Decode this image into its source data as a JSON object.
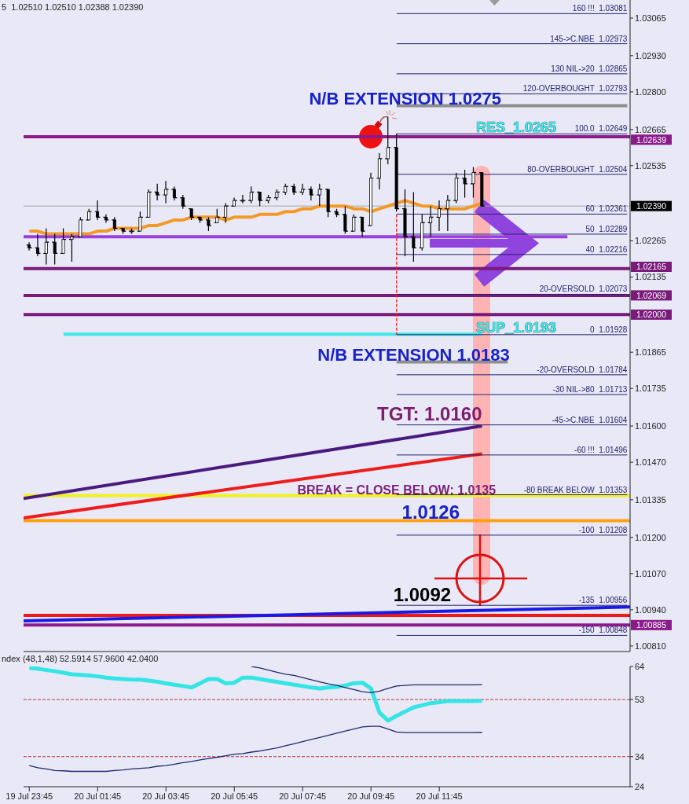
{
  "chart_data": [
    {
      "type": "candlestick",
      "color": "#000000",
      "x": [
        "--07-19T23:45",
        "--07-20T00:00",
        "--07-20T00:15",
        "--07-20T00:30",
        "--07-20T00:45",
        "--07-20T01:00",
        "--07-20T01:15",
        "--07-20T01:30",
        "--07-20T01:45",
        "--07-20T02:00",
        "--07-20T02:15",
        "--07-20T02:30",
        "--07-20T02:45",
        "--07-20T03:00",
        "--07-20T03:15",
        "--07-20T03:30",
        "--07-20T03:45",
        "--07-20T04:00",
        "--07-20T04:15",
        "--07-20T04:30",
        "--07-20T04:45",
        "--07-20T05:00",
        "--07-20T05:15",
        "--07-20T05:30",
        "--07-20T05:45",
        "--07-20T06:00",
        "--07-20T06:15",
        "--07-20T06:30",
        "--07-20T06:45",
        "--07-20T07:00",
        "--07-20T07:15",
        "--07-20T07:30",
        "--07-20T07:45",
        "--07-20T08:00",
        "--07-20T08:15",
        "--07-20T08:30",
        "--07-20T08:45",
        "--07-20T09:00",
        "--07-20T09:15",
        "--07-20T09:30",
        "--07-20T09:45",
        "--07-20T10:00",
        "--07-20T10:15",
        "--07-20T10:30",
        "--07-20T10:45",
        "--07-20T11:00",
        "--07-20T11:15",
        "--07-20T11:30",
        "--07-20T11:45",
        "--07-20T12:00",
        "--07-20T12:15",
        "--07-20T12:30",
        "--07-20T12:45",
        "--07-20T13:00"
      ],
      "ohlc": [
        [
          1.0225,
          1.0226,
          1.0223,
          1.0224
        ],
        [
          1.0224,
          1.0229,
          1.0221,
          1.0222
        ],
        [
          1.0222,
          1.0231,
          1.0218,
          1.0226
        ],
        [
          1.0226,
          1.0229,
          1.0218,
          1.0222
        ],
        [
          1.0222,
          1.0231,
          1.0222,
          1.0227
        ],
        [
          1.0227,
          1.0229,
          1.0219,
          1.0228
        ],
        [
          1.0228,
          1.0235,
          1.0228,
          1.0234
        ],
        [
          1.0234,
          1.0238,
          1.0234,
          1.0237
        ],
        [
          1.0237,
          1.0241,
          1.0234,
          1.0235
        ],
        [
          1.0235,
          1.0236,
          1.0233,
          1.0234
        ],
        [
          1.0234,
          1.0235,
          1.023,
          1.0231
        ],
        [
          1.0231,
          1.0231,
          1.0229,
          1.023
        ],
        [
          1.023,
          1.0231,
          1.0229,
          1.023
        ],
        [
          1.023,
          1.0237,
          1.023,
          1.0235
        ],
        [
          1.0235,
          1.0245,
          1.0235,
          1.0244
        ],
        [
          1.0244,
          1.0247,
          1.0241,
          1.0243
        ],
        [
          1.0243,
          1.0248,
          1.024,
          1.0245
        ],
        [
          1.0245,
          1.0246,
          1.0241,
          1.0242
        ],
        [
          1.0242,
          1.0243,
          1.0238,
          1.0239
        ],
        [
          1.0238,
          1.0238,
          1.0234,
          1.0235
        ],
        [
          1.0235,
          1.0235,
          1.0233,
          1.0234
        ],
        [
          1.0234,
          1.0235,
          1.023,
          1.0232
        ],
        [
          1.0233,
          1.0238,
          1.0233,
          1.0235
        ],
        [
          1.0235,
          1.024,
          1.0233,
          1.0239
        ],
        [
          1.0239,
          1.0242,
          1.0239,
          1.0241
        ],
        [
          1.0241,
          1.0243,
          1.024,
          1.0241
        ],
        [
          1.0241,
          1.0246,
          1.024,
          1.0244
        ],
        [
          1.0244,
          1.0244,
          1.0239,
          1.0241
        ],
        [
          1.0241,
          1.0243,
          1.024,
          1.0242
        ],
        [
          1.0242,
          1.0245,
          1.0241,
          1.0244
        ],
        [
          1.0244,
          1.0247,
          1.0243,
          1.0246
        ],
        [
          1.0246,
          1.0247,
          1.0243,
          1.0244
        ],
        [
          1.0244,
          1.0247,
          1.0243,
          1.0245
        ],
        [
          1.0245,
          1.0246,
          1.0241,
          1.0243
        ],
        [
          1.0243,
          1.0247,
          1.0239,
          1.0245
        ],
        [
          1.0245,
          1.0245,
          1.0235,
          1.0237
        ],
        [
          1.0237,
          1.0238,
          1.0235,
          1.0236
        ],
        [
          1.0236,
          1.0239,
          1.0229,
          1.023
        ],
        [
          1.023,
          1.0236,
          1.023,
          1.0235
        ],
        [
          1.0235,
          1.0235,
          1.0228,
          1.023
        ],
        [
          1.0232,
          1.0251,
          1.0232,
          1.0249
        ],
        [
          1.0249,
          1.0258,
          1.0245,
          1.0256
        ],
        [
          1.0256,
          1.0271,
          1.0254,
          1.026
        ],
        [
          1.026,
          1.0265,
          1.0237,
          1.0238
        ],
        [
          1.0238,
          1.0245,
          1.0221,
          1.0228
        ],
        [
          1.0228,
          1.0244,
          1.0219,
          1.0224
        ],
        [
          1.0224,
          1.0236,
          1.0223,
          1.0233
        ],
        [
          1.0233,
          1.0239,
          1.0228,
          1.0235
        ],
        [
          1.0235,
          1.0241,
          1.023,
          1.0238
        ],
        [
          1.0238,
          1.0243,
          1.023,
          1.0241
        ],
        [
          1.0241,
          1.0251,
          1.024,
          1.0249
        ],
        [
          1.0249,
          1.0252,
          1.0242,
          1.0247
        ],
        [
          1.0247,
          1.0253,
          1.0242,
          1.0251
        ],
        [
          1.0251,
          1.0251,
          1.02388,
          1.0239
        ]
      ],
      "xlim": [
        "--07-19T23:35",
        "--07-20T17:20"
      ],
      "ylim": [
        1.0079,
        1.0313
      ],
      "yticks": [
        1.03065,
        {
          "value": 1.0293,
          "label": "1.02930"
        },
        {
          "value": 1.028,
          "label": "1.02800"
        },
        1.02665,
        1.02535,
        1.02265,
        1.02135,
        1.01865,
        1.01735,
        {
          "value": 1.016,
          "label": "1.01600"
        },
        {
          "value": 1.0147,
          "label": "1.01470"
        },
        1.01335,
        {
          "value": 1.012,
          "label": "1.01200"
        },
        {
          "value": 1.0107,
          "label": "1.01070"
        },
        {
          "value": 1.0094,
          "label": "1.00940"
        },
        {
          "value": 1.0081,
          "label": "1.00810"
        }
      ],
      "tick_labels": "y",
      "series": [
        {
          "type": "line",
          "color": "#f39a26",
          "values": [
            1.023,
            1.023,
            1.0229,
            1.0229,
            1.0229,
            1.0229,
            1.0229,
            1.0229,
            1.023,
            1.023,
            1.0231,
            1.0231,
            1.0231,
            1.0231,
            1.0232,
            1.0232,
            1.0233,
            1.0234,
            1.0234,
            1.0235,
            1.0235,
            1.0235,
            1.0235,
            1.0234,
            1.0235,
            1.0235,
            1.0235,
            1.0236,
            1.0236,
            1.0236,
            1.0237,
            1.0237,
            1.0238,
            1.0238,
            1.0239,
            1.0239,
            1.0239,
            1.0239,
            1.0238,
            1.0238,
            1.0237,
            1.0238,
            1.0239,
            1.024,
            1.0241,
            1.024,
            1.0239,
            1.0239,
            1.0238,
            1.0238,
            1.0238,
            1.0238,
            1.0239,
            1.024
          ]
        },
        {
          "type": "line",
          "color": "#9b3fe0",
          "x": [
            "--07-19T23:35",
            "--07-20T15:30"
          ],
          "values": [
            1.0228,
            1.0228
          ]
        },
        {
          "type": "line",
          "color": "#3ee8e8",
          "x": [
            "--07-20T00:45",
            "--07-20T13:00"
          ],
          "values": [
            1.0193,
            1.0193
          ]
        },
        {
          "type": "line",
          "color": "#8e8e8e",
          "x": [
            "--07-20T10:30",
            "--07-20T17:15"
          ],
          "values": [
            1.0275,
            1.0275
          ]
        },
        {
          "type": "line",
          "color": "#8e8e8e",
          "x": [
            "--07-20T10:30",
            "--07-20T13:45"
          ],
          "values": [
            1.0183,
            1.0183
          ]
        },
        {
          "type": "line",
          "color": "#4a1a7e",
          "x": [
            "--07-19T23:35",
            "--07-20T13:00"
          ],
          "values": [
            1.0134,
            1.016
          ]
        },
        {
          "type": "line",
          "color": "#ee1c1c",
          "x": [
            "--07-19T23:35",
            "--07-20T13:00"
          ],
          "values": [
            1.0127,
            1.015
          ]
        },
        {
          "type": "line",
          "color": "#1a1ae6",
          "x": [
            "--07-19T23:35",
            "--07-20T17:20"
          ],
          "values": [
            1.009,
            1.0095
          ]
        },
        {
          "type": "line",
          "color": "#e02020",
          "line_style": "dashed",
          "x": [
            "--07-20T10:30",
            "--07-20T10:30"
          ],
          "values": [
            1.0236,
            1.01928
          ]
        },
        {
          "type": "line",
          "name": "160 !!!  1.03081",
          "color": "#23236b",
          "x": [
            "--07-20T10:30",
            "--07-20T17:15"
          ],
          "values": [
            1.03081,
            1.03081
          ]
        },
        {
          "type": "line",
          "name": "145->C.NBE  1.02973",
          "color": "#23236b",
          "x": [
            "--07-20T10:30",
            "--07-20T17:15"
          ],
          "values": [
            1.02973,
            1.02973
          ]
        },
        {
          "type": "line",
          "name": "130 NIL->20  1.02865",
          "color": "#23236b",
          "x": [
            "--07-20T10:30",
            "--07-20T17:15"
          ],
          "values": [
            1.02865,
            1.02865
          ]
        },
        {
          "type": "line",
          "name": "120-OVERBOUGHT  1.02793",
          "color": "#23236b",
          "x": [
            "--07-20T10:30",
            "--07-20T17:15"
          ],
          "values": [
            1.02793,
            1.02793
          ]
        },
        {
          "type": "line",
          "name": "100.0  1.02649",
          "color": "#23236b",
          "x": [
            "--07-20T10:30",
            "--07-20T17:15"
          ],
          "values": [
            1.02649,
            1.02649
          ]
        },
        {
          "type": "line",
          "name": "80-OVERBOUGHT  1.02504",
          "color": "#23236b",
          "x": [
            "--07-20T10:30",
            "--07-20T17:15"
          ],
          "values": [
            1.02504,
            1.02504
          ]
        },
        {
          "type": "line",
          "name": "60  1.02361",
          "color": "#23236b",
          "x": [
            "--07-20T10:30",
            "--07-20T17:15"
          ],
          "values": [
            1.02361,
            1.02361
          ]
        },
        {
          "type": "line",
          "name": "50  1.02289",
          "color": "#23236b",
          "x": [
            "--07-20T10:30",
            "--07-20T17:15"
          ],
          "values": [
            1.02289,
            1.02289
          ]
        },
        {
          "type": "line",
          "name": "40  1.02216",
          "color": "#23236b",
          "x": [
            "--07-20T10:30",
            "--07-20T17:15"
          ],
          "values": [
            1.02216,
            1.02216
          ]
        },
        {
          "type": "line",
          "name": "20-OVERSOLD  1.02073",
          "color": "#23236b",
          "x": [
            "--07-20T10:30",
            "--07-20T17:15"
          ],
          "values": [
            1.02073,
            1.02073
          ]
        },
        {
          "type": "line",
          "name": "0  1.01928",
          "color": "#23236b",
          "x": [
            "--07-20T10:30",
            "--07-20T17:15"
          ],
          "values": [
            1.01928,
            1.01928
          ]
        },
        {
          "type": "line",
          "name": "-20-OVERSOLD  1.01784",
          "color": "#23236b",
          "x": [
            "--07-20T10:30",
            "--07-20T17:15"
          ],
          "values": [
            1.01784,
            1.01784
          ]
        },
        {
          "type": "line",
          "name": "-30 NIL->80  1.01713",
          "color": "#23236b",
          "x": [
            "--07-20T10:30",
            "--07-20T17:15"
          ],
          "values": [
            1.01713,
            1.01713
          ]
        },
        {
          "type": "line",
          "name": "-45->C.NBE  1.01604",
          "color": "#23236b",
          "x": [
            "--07-20T10:30",
            "--07-20T17:15"
          ],
          "values": [
            1.01604,
            1.01604
          ]
        },
        {
          "type": "line",
          "name": "-60 !!!  1.01496",
          "color": "#23236b",
          "x": [
            "--07-20T10:30",
            "--07-20T17:15"
          ],
          "values": [
            1.01496,
            1.01496
          ]
        },
        {
          "type": "line",
          "name": "-80 BREAK BELOW  1.01353",
          "color": "#23236b",
          "x": [
            "--07-20T10:30",
            "--07-20T17:15"
          ],
          "values": [
            1.01353,
            1.01353
          ]
        },
        {
          "type": "line",
          "name": "-100  1.01208",
          "color": "#23236b",
          "x": [
            "--07-20T10:30",
            "--07-20T17:15"
          ],
          "values": [
            1.01208,
            1.01208
          ]
        },
        {
          "type": "line",
          "name": "-135  1.00956",
          "color": "#23236b",
          "x": [
            "--07-20T10:30",
            "--07-20T17:15"
          ],
          "values": [
            1.00956,
            1.00956
          ]
        },
        {
          "type": "line",
          "name": "-150  1.00848",
          "color": "#23236b",
          "x": [
            "--07-20T10:30",
            "--07-20T17:15"
          ],
          "values": [
            1.00848,
            1.00848
          ]
        }
      ],
      "ref_lines": [
        {
          "axis": "y",
          "value": 1.02639,
          "label": "1.02639",
          "color": "#8b1a8b"
        },
        {
          "axis": "y",
          "value": 1.02165,
          "label": "1.02165",
          "color": "#7a1a7a"
        },
        {
          "axis": "y",
          "value": 1.02069,
          "label": "1.02069",
          "color": "#7a1a7a"
        },
        {
          "axis": "y",
          "value": 1.02,
          "label": "1.02000",
          "color": "#7a1a7a"
        },
        {
          "axis": "y",
          "value": 1.0239,
          "label": "1.02390"
        },
        {
          "axis": "y",
          "value": 1.0135,
          "color": "#f2f21e"
        },
        {
          "axis": "y",
          "value": 1.0126,
          "color": "#ffa010"
        },
        {
          "axis": "y",
          "value": 1.0092,
          "color": "#f01818"
        },
        {
          "axis": "y",
          "value": 1.00885,
          "label": "1.00885",
          "color": "#8b1a8b"
        }
      ],
      "annotations": [
        "5  1.02510 1.02510 1.02388 1.02390",
        {
          "text": "N/B EXTENSION 1.0275",
          "x": "--07-20T10:45",
          "y": 1.0275
        },
        {
          "text": "RES_1.0265",
          "x": "--07-20T14:00",
          "y": 1.0265
        },
        {
          "text": "SUP_1.0193",
          "x": "--07-20T14:00",
          "y": 1.0193
        },
        {
          "text": "N/B EXTENSION 1.0183",
          "x": "--07-20T11:00",
          "y": 1.0183
        },
        {
          "text": "TGT: 1.0160",
          "x": "--07-20T13:00",
          "y": 1.016
        },
        {
          "text": "BREAK = CLOSE BELOW: 1.0135",
          "x": "--07-20T10:30",
          "y": 1.0135
        },
        {
          "text": "1.0126",
          "x": "--07-20T11:30",
          "y": 1.0126
        },
        {
          "text": "1.0092",
          "x": "--07-20T11:15",
          "y": 1.0092
        }
      ]
    },
    {
      "type": "line",
      "x": [
        "--07-19T23:45",
        "--07-20T00:00",
        "--07-20T00:15",
        "--07-20T00:30",
        "--07-20T00:45",
        "--07-20T01:00",
        "--07-20T01:15",
        "--07-20T01:30",
        "--07-20T01:45",
        "--07-20T02:00",
        "--07-20T02:15",
        "--07-20T02:30",
        "--07-20T02:45",
        "--07-20T03:00",
        "--07-20T03:15",
        "--07-20T03:30",
        "--07-20T03:45",
        "--07-20T04:00",
        "--07-20T04:15",
        "--07-20T04:30",
        "--07-20T04:45",
        "--07-20T05:00",
        "--07-20T05:15",
        "--07-20T05:30",
        "--07-20T05:45",
        "--07-20T06:00",
        "--07-20T06:15",
        "--07-20T06:30",
        "--07-20T06:45",
        "--07-20T07:00",
        "--07-20T07:15",
        "--07-20T07:30",
        "--07-20T07:45",
        "--07-20T08:00",
        "--07-20T08:15",
        "--07-20T08:30",
        "--07-20T08:45",
        "--07-20T09:00",
        "--07-20T09:15",
        "--07-20T09:30",
        "--07-20T09:45",
        "--07-20T10:00",
        "--07-20T10:15",
        "--07-20T10:30",
        "--07-20T10:45",
        "--07-20T11:00",
        "--07-20T11:15",
        "--07-20T11:30",
        "--07-20T11:45",
        "--07-20T12:00",
        "--07-20T12:15",
        "--07-20T12:30",
        "--07-20T12:45",
        "--07-20T13:00"
      ],
      "xlim": [
        "--07-19T23:35",
        "--07-20T17:20"
      ],
      "xticks": [
        {
          "value": "--07-19T23:45",
          "label": "19 Jul 23:45"
        },
        {
          "value": "--07-20T01:45",
          "label": "20 Jul 01:45"
        },
        {
          "value": "--07-20T03:45",
          "label": "20 Jul 03:45"
        },
        {
          "value": "--07-20T05:45",
          "label": "20 Jul 05:45"
        },
        {
          "value": "--07-20T07:45",
          "label": "20 Jul 07:45"
        },
        {
          "value": "--07-20T09:45",
          "label": "20 Jul 09:45"
        },
        {
          "value": "--07-20T11:45",
          "label": "20 Jul 11:45"
        }
      ],
      "ylim": [
        24,
        64
      ],
      "yticks": [
        64,
        53,
        34,
        24
      ],
      "series": [
        {
          "color": "#33e5e5",
          "values": [
            63.5,
            63.3,
            62.8,
            62.4,
            61.9,
            61.4,
            61.2,
            61.0,
            60.7,
            60.3,
            60.0,
            59.8,
            59.6,
            59.6,
            59.3,
            58.9,
            58.4,
            57.9,
            57.5,
            57.0,
            58.4,
            59.8,
            59.8,
            58.4,
            58.6,
            60.3,
            60.3,
            59.8,
            59.3,
            58.9,
            58.4,
            57.9,
            57.5,
            57.0,
            56.7,
            57.0,
            57.2,
            57.7,
            58.4,
            58.6,
            56.7,
            48.6,
            46.0,
            47.6,
            49.0,
            50.4,
            51.1,
            51.8,
            52.1,
            52.5,
            52.5,
            52.5,
            52.5,
            52.5914
          ]
        },
        {
          "color": "#1f2a6e",
          "values": [
            null,
            null,
            null,
            null,
            null,
            null,
            null,
            null,
            null,
            null,
            null,
            null,
            null,
            null,
            null,
            null,
            null,
            null,
            null,
            null,
            null,
            null,
            null,
            null,
            null,
            null,
            64,
            63.5,
            62.8,
            62.1,
            61.4,
            61.0,
            60.3,
            59.6,
            58.9,
            58.2,
            57.7,
            57.0,
            56.3,
            55.6,
            55.3,
            55.8,
            56.7,
            57.5,
            57.7,
            57.9,
            57.9,
            57.9,
            57.9,
            57.9,
            57.9,
            57.9,
            57.9,
            57.96
          ]
        },
        {
          "color": "#1f2a6e",
          "values": [
            31.0,
            30.3,
            29.9,
            29.4,
            29.3,
            29.1,
            29.1,
            29.1,
            29.1,
            29.1,
            29.4,
            29.6,
            29.9,
            30.1,
            30.3,
            30.8,
            31.0,
            31.5,
            32.0,
            32.4,
            32.9,
            33.4,
            33.8,
            34.3,
            34.8,
            35.0,
            35.5,
            35.9,
            36.4,
            36.9,
            37.6,
            38.3,
            39.0,
            39.7,
            40.4,
            41.1,
            41.8,
            42.5,
            43.2,
            43.9,
            44.1,
            44.1,
            43.2,
            42.2,
            42.0,
            42.0,
            42.0,
            42.0,
            42.0,
            42.0,
            42.0,
            42.0,
            42.0,
            42.04
          ]
        }
      ],
      "ref_lines": [
        {
          "axis": "y",
          "value": 53,
          "color": "#b03a3a",
          "line_style": "dashed"
        },
        {
          "axis": "y",
          "value": 34,
          "color": "#b03a3a",
          "line_style": "dashed"
        }
      ],
      "annotations": [
        "ndex (48,1,48) 52.5914 57.9600 42.0400"
      ]
    }
  ]
}
